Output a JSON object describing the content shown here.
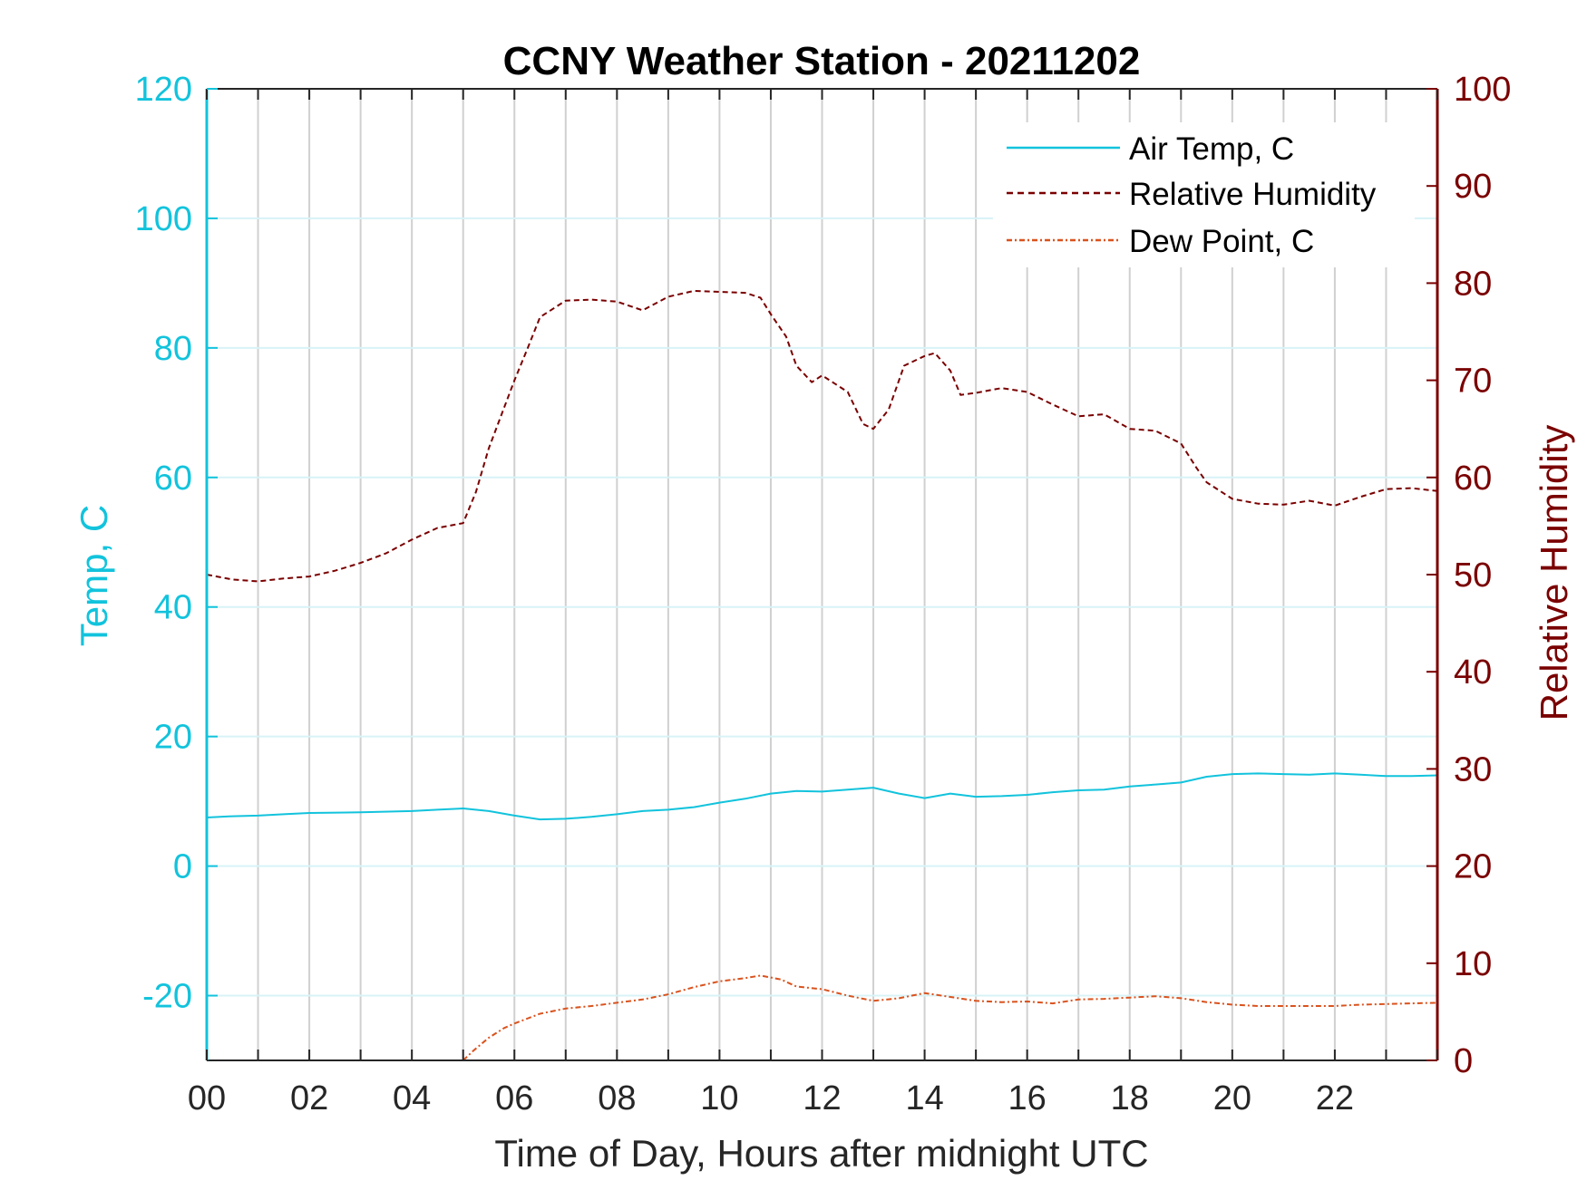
{
  "chart_data": {
    "type": "line",
    "title": "CCNY Weather Station - 20211202",
    "xlabel": "Time of Day, Hours after midnight UTC",
    "ylabel_left": "Temp, C",
    "ylabel_right": "Relative Humidity",
    "xlim": [
      0,
      24
    ],
    "ylim_left": [
      -30,
      120
    ],
    "ylim_right": [
      0,
      100
    ],
    "x_ticks": [
      0,
      2,
      4,
      6,
      8,
      10,
      12,
      14,
      16,
      18,
      20,
      22
    ],
    "x_tick_labels": [
      "00",
      "02",
      "04",
      "06",
      "08",
      "10",
      "12",
      "14",
      "16",
      "18",
      "20",
      "22"
    ],
    "y_left_ticks": [
      120,
      100,
      80,
      60,
      40,
      20,
      0,
      -20
    ],
    "y_right_ticks": [
      100,
      90,
      80,
      70,
      60,
      50,
      40,
      30,
      20,
      10,
      0
    ],
    "grid": "vertical every hour, horizontal at left ticks",
    "legend_position": "top-right",
    "colors": {
      "temp": "#12c3dc",
      "humidity": "#7a0000",
      "dewpoint": "#d9531e",
      "grid_v": "#d0d0d0",
      "grid_h": "#d8f3f7"
    },
    "series": [
      {
        "name": "Air Temp, C",
        "axis": "left",
        "style": "solid",
        "x": [
          0,
          0.5,
          1,
          1.5,
          2,
          3,
          4,
          4.5,
          5,
          5.5,
          6,
          6.5,
          7,
          7.5,
          8,
          8.5,
          9,
          9.5,
          10,
          10.5,
          11,
          11.5,
          12,
          12.5,
          13,
          13.5,
          14,
          14.5,
          15,
          15.5,
          16,
          16.5,
          17,
          17.5,
          18,
          18.5,
          19,
          19.5,
          20,
          20.5,
          21,
          21.5,
          22,
          22.5,
          23,
          23.5,
          24
        ],
        "values": [
          7.5,
          7.7,
          7.8,
          8.0,
          8.2,
          8.3,
          8.5,
          8.7,
          8.9,
          8.5,
          7.8,
          7.2,
          7.3,
          7.6,
          8.0,
          8.5,
          8.7,
          9.1,
          9.8,
          10.4,
          11.2,
          11.6,
          11.5,
          11.8,
          12.1,
          11.2,
          10.5,
          11.2,
          10.7,
          10.8,
          11.0,
          11.4,
          11.7,
          11.8,
          12.3,
          12.6,
          12.9,
          13.8,
          14.2,
          14.3,
          14.2,
          14.1,
          14.3,
          14.1,
          13.9,
          13.9,
          14.0
        ]
      },
      {
        "name": "Relative Humidity",
        "axis": "right",
        "style": "dashed",
        "x": [
          0,
          0.5,
          1,
          1.5,
          2,
          2.5,
          3,
          3.5,
          4,
          4.5,
          5,
          5.25,
          5.5,
          6,
          6.25,
          6.5,
          7,
          7.5,
          8,
          8.5,
          9,
          9.5,
          10,
          10.5,
          10.8,
          11,
          11.3,
          11.5,
          11.8,
          12,
          12.5,
          12.8,
          13,
          13.3,
          13.6,
          14,
          14.2,
          14.5,
          14.7,
          15,
          15.5,
          16,
          16.5,
          17,
          17.5,
          18,
          18.5,
          19,
          19.3,
          19.5,
          20,
          20.5,
          21,
          21.5,
          22,
          22.5,
          23,
          23.5,
          24
        ],
        "values": [
          50.0,
          49.5,
          49.3,
          49.6,
          49.8,
          50.4,
          51.2,
          52.2,
          53.6,
          54.8,
          55.3,
          58.5,
          63.0,
          70.0,
          73.2,
          76.5,
          78.2,
          78.3,
          78.1,
          77.2,
          78.6,
          79.2,
          79.1,
          79.0,
          78.5,
          76.8,
          74.5,
          71.5,
          69.8,
          70.5,
          68.8,
          65.5,
          65.0,
          67.0,
          71.5,
          72.5,
          72.8,
          71.0,
          68.5,
          68.7,
          69.2,
          68.8,
          67.5,
          66.3,
          66.5,
          65.0,
          64.8,
          63.5,
          61.0,
          59.5,
          57.8,
          57.3,
          57.2,
          57.6,
          57.1,
          58.0,
          58.8,
          58.9,
          58.6
        ]
      },
      {
        "name": "Dew Point, C",
        "axis": "left",
        "style": "dash-dot",
        "x": [
          5.0,
          5.2,
          5.5,
          5.8,
          6.0,
          6.5,
          7,
          7.5,
          8,
          8.5,
          9,
          9.5,
          10,
          10.5,
          10.8,
          11.2,
          11.5,
          12,
          12.5,
          13,
          13.5,
          14,
          14.5,
          15,
          15.5,
          16,
          16.5,
          17,
          17.5,
          18,
          18.5,
          19,
          19.5,
          20,
          20.5,
          21,
          21.5,
          22,
          22.5,
          23,
          23.5,
          24
        ],
        "values": [
          -30.0,
          -28.5,
          -26.5,
          -25.0,
          -24.3,
          -22.8,
          -22.0,
          -21.6,
          -21.1,
          -20.6,
          -19.8,
          -18.7,
          -17.8,
          -17.3,
          -16.9,
          -17.5,
          -18.6,
          -19.0,
          -20.0,
          -20.8,
          -20.4,
          -19.6,
          -20.2,
          -20.8,
          -21.0,
          -20.9,
          -21.2,
          -20.6,
          -20.5,
          -20.3,
          -20.1,
          -20.4,
          -21.0,
          -21.4,
          -21.6,
          -21.6,
          -21.6,
          -21.6,
          -21.4,
          -21.3,
          -21.2,
          -21.1
        ]
      }
    ]
  }
}
